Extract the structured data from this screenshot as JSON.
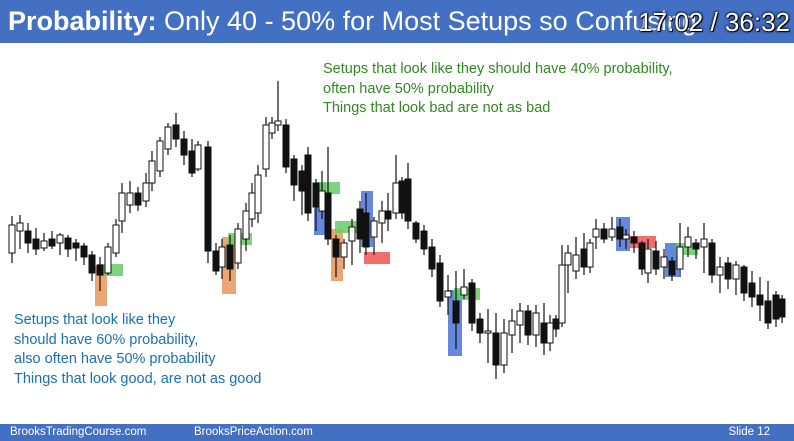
{
  "title": {
    "bold": "Probability:",
    "rest": " Only 40 - 50% for Most Setups so Confusing"
  },
  "timer": "17:02 / 36:32",
  "notes": {
    "green": [
      "Setups that look like they should have 40% probability,",
      "often have 50% probability",
      "Things that look bad are not as bad"
    ],
    "blue": [
      "Setups that look like they",
      "should have 60% probability,",
      "also often have 50% probability",
      "Things that look good, are not as good"
    ]
  },
  "footer": {
    "left": "BrooksTradingCourse.com",
    "middle": "BrooksPriceAction.com",
    "slide": "Slide  12"
  },
  "colors": {
    "title_bar": "#4470c4",
    "green_note": "#2e8b1e",
    "blue_note": "#1a6fb6",
    "bull_highlight": "#66cc66",
    "bear_highlight": "#ee5555",
    "orange_highlight": "#e8965a",
    "blue_highlight": "#4b73d6"
  }
}
